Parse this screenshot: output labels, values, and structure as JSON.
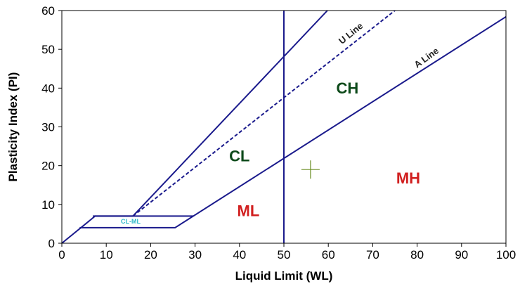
{
  "chart_data": {
    "type": "line",
    "title": "",
    "xlabel": "Liquid Limit (WL)",
    "ylabel": "Plasticity Index (PI)",
    "xlim": [
      0,
      100
    ],
    "ylim": [
      0,
      60
    ],
    "xticks": [
      "0",
      "10",
      "20",
      "30",
      "40",
      "50",
      "60",
      "70",
      "80",
      "90",
      "100"
    ],
    "yticks": [
      "0",
      "10",
      "20",
      "30",
      "40",
      "50",
      "60"
    ],
    "grid": false,
    "colors": {
      "lines": "#1a1a8c",
      "region_dark": "#0d4a1a",
      "region_red": "#d11f1f",
      "region_cyan": "#2cb8c8",
      "point": "#6b8e23"
    },
    "series": [
      {
        "name": "U Line",
        "style": "solid",
        "points": [
          [
            0,
            0
          ],
          [
            7.5,
            7
          ],
          [
            16,
            7
          ],
          [
            59.8,
            60
          ]
        ]
      },
      {
        "name": "dashed",
        "style": "dashed",
        "points": [
          [
            16,
            7
          ],
          [
            75,
            60
          ]
        ]
      },
      {
        "name": "A Line",
        "style": "solid",
        "points": [
          [
            4,
            4
          ],
          [
            25.5,
            4
          ],
          [
            100,
            58.4
          ]
        ]
      },
      {
        "name": "CL-ML upper",
        "style": "solid",
        "points": [
          [
            7,
            7
          ],
          [
            29.6,
            7
          ]
        ]
      },
      {
        "name": "WL = 50",
        "style": "solid",
        "points": [
          [
            50,
            0
          ],
          [
            50,
            60
          ]
        ]
      }
    ],
    "line_labels": [
      {
        "text": "U Line",
        "x": 65.5,
        "y": 53.5,
        "angle": -39
      },
      {
        "text": "A Line",
        "x": 82.5,
        "y": 47.2,
        "angle": -36
      }
    ],
    "regions": [
      {
        "text": "CH",
        "x": 64.3,
        "y": 39.7,
        "color": "dark"
      },
      {
        "text": "CL",
        "x": 40.0,
        "y": 22.2,
        "color": "dark"
      },
      {
        "text": "MH",
        "x": 78.0,
        "y": 16.5,
        "color": "red"
      },
      {
        "text": "ML",
        "x": 42.0,
        "y": 8.0,
        "color": "red"
      },
      {
        "text": "CL-ML",
        "x": 15.5,
        "y": 5.5,
        "color": "cyan"
      }
    ],
    "points": [
      {
        "x": 56,
        "y": 19
      }
    ]
  }
}
